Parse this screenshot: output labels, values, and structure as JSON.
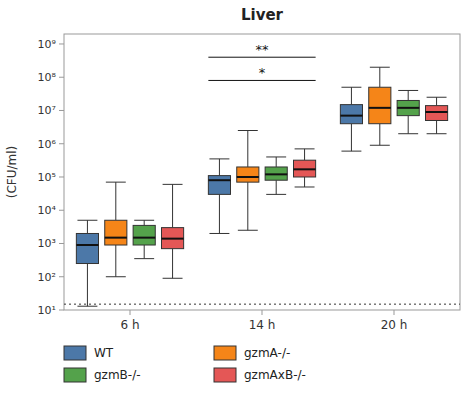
{
  "chart_data": {
    "type": "box",
    "title": "Liver",
    "y_label": "(CFU/ml)",
    "categories": [
      "6 h",
      "14 h",
      "20 h"
    ],
    "log": "y",
    "ylim": [
      10,
      1995262314.968879
    ],
    "yticks": [
      {
        "value": 10,
        "label": "10¹"
      },
      {
        "value": 100,
        "label": "10²"
      },
      {
        "value": 1000,
        "label": "10³"
      },
      {
        "value": 10000,
        "label": "10⁴"
      },
      {
        "value": 100000,
        "label": "10⁵"
      },
      {
        "value": 1000000,
        "label": "10⁶"
      },
      {
        "value": 10000000,
        "label": "10⁷"
      },
      {
        "value": 100000000,
        "label": "10⁸"
      },
      {
        "value": 1000000000,
        "label": "10⁹"
      }
    ],
    "grid": false,
    "legend": "bottom",
    "detection_limit": 15,
    "series": [
      {
        "name": "WT",
        "color": "#4c78a8",
        "q1": [
          250,
          30000,
          4000000
        ],
        "median": [
          900,
          80000,
          7000000
        ],
        "q3": [
          2000,
          110000,
          15000000
        ],
        "whislo": [
          13,
          2000,
          600000
        ],
        "whishi": [
          5000,
          350000,
          50000000
        ]
      },
      {
        "name": "gzmA-/-",
        "color": "#f58518",
        "q1": [
          900,
          70000,
          4000000
        ],
        "median": [
          1500,
          100000,
          12000000
        ],
        "q3": [
          5000,
          200000,
          50000000
        ],
        "whislo": [
          100,
          2500,
          900000
        ],
        "whishi": [
          70000,
          2500000,
          200000000
        ]
      },
      {
        "name": "gzmB-/-",
        "color": "#54a24b",
        "q1": [
          900,
          80000,
          7000000
        ],
        "median": [
          1500,
          120000,
          12000000
        ],
        "q3": [
          3500,
          200000,
          20000000
        ],
        "whislo": [
          350,
          30000,
          2000000
        ],
        "whishi": [
          5000,
          400000,
          40000000
        ]
      },
      {
        "name": "gzmAxB-/-",
        "color": "#e45756",
        "q1": [
          700,
          100000,
          5000000
        ],
        "median": [
          1400,
          170000,
          9000000
        ],
        "q3": [
          3000,
          320000,
          14000000
        ],
        "whislo": [
          90,
          50000,
          2000000
        ],
        "whishi": [
          60000,
          700000,
          25000000
        ]
      }
    ],
    "annotations": [
      {
        "label": "**",
        "y": 400000000,
        "category": "14 h"
      },
      {
        "label": "*",
        "y": 80000000,
        "category": "14 h"
      }
    ]
  }
}
